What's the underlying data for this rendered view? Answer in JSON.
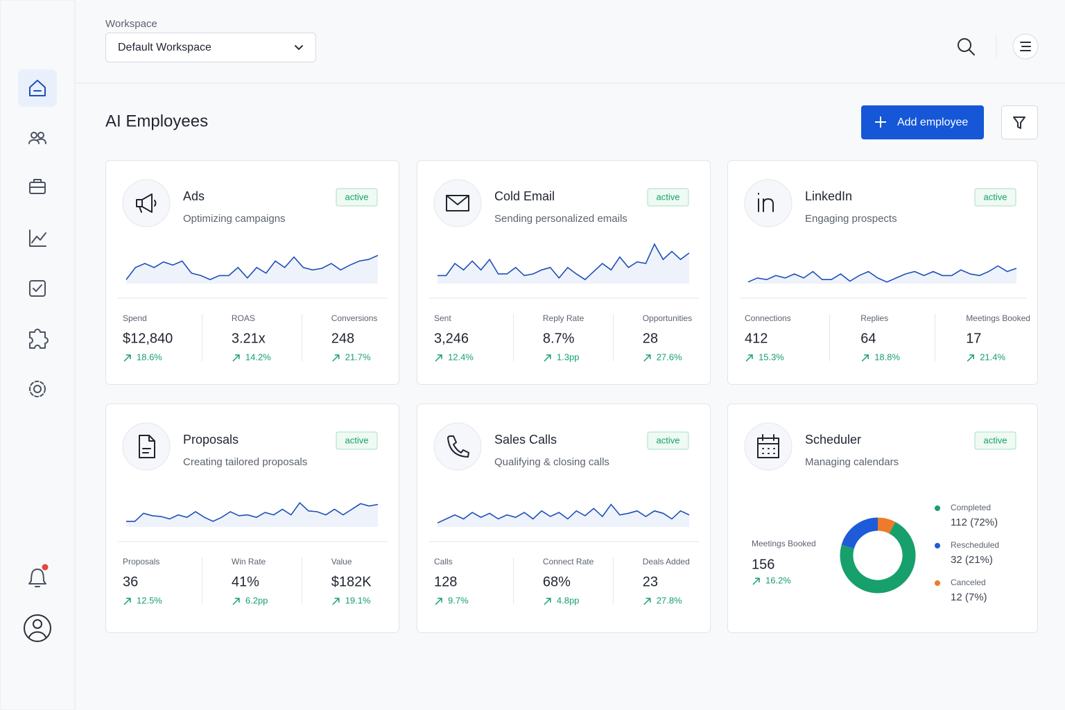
{
  "header": {
    "workspace_label": "Workspace",
    "workspace_value": "Default Workspace"
  },
  "page": {
    "title": "AI Employees",
    "add_button": "Add employee"
  },
  "cards": [
    {
      "name": "Ads",
      "subtitle": "Optimizing campaigns",
      "status": "active",
      "trend": [
        10,
        40,
        50,
        40,
        54,
        46,
        56,
        26,
        20,
        10,
        20,
        20,
        40,
        14,
        40,
        26,
        56,
        40,
        66,
        40,
        34,
        38,
        50,
        34,
        46,
        56,
        60,
        70
      ],
      "metrics": [
        {
          "label": "Spend",
          "value": "$12,840",
          "delta": "18.6%"
        },
        {
          "label": "ROAS",
          "value": "3.21x",
          "delta": "14.2%"
        },
        {
          "label": "Conversions",
          "value": "248",
          "delta": "21.7%"
        }
      ]
    },
    {
      "name": "Cold Email",
      "subtitle": "Sending personalized emails",
      "status": "active",
      "trend": [
        20,
        20,
        50,
        34,
        56,
        34,
        60,
        24,
        24,
        40,
        20,
        24,
        34,
        40,
        14,
        40,
        24,
        10,
        30,
        50,
        34,
        66,
        40,
        54,
        50,
        98,
        60,
        80,
        60,
        76
      ],
      "metrics": [
        {
          "label": "Sent",
          "value": "3,246",
          "delta": "12.4%"
        },
        {
          "label": "Reply Rate",
          "value": "8.7%",
          "delta": "1.3pp"
        },
        {
          "label": "Opportunities",
          "value": "28",
          "delta": "27.6%"
        }
      ]
    },
    {
      "name": "LinkedIn",
      "subtitle": "Engaging prospects",
      "status": "active",
      "trend": [
        4,
        14,
        10,
        20,
        14,
        24,
        14,
        30,
        10,
        10,
        24,
        6,
        20,
        30,
        14,
        4,
        14,
        24,
        30,
        20,
        30,
        20,
        20,
        34,
        24,
        20,
        30,
        44,
        30,
        38
      ],
      "metrics": [
        {
          "label": "Connections",
          "value": "412",
          "delta": "15.3%"
        },
        {
          "label": "Replies",
          "value": "64",
          "delta": "18.8%"
        },
        {
          "label": "Meetings Booked",
          "value": "17",
          "delta": "21.4%"
        }
      ]
    },
    {
      "name": "Proposals",
      "subtitle": "Creating tailored proposals",
      "status": "active",
      "trend": [
        14,
        14,
        34,
        28,
        26,
        20,
        30,
        24,
        38,
        24,
        14,
        24,
        38,
        28,
        30,
        24,
        36,
        30,
        44,
        30,
        60,
        40,
        38,
        30,
        44,
        30,
        44,
        58,
        52,
        56
      ],
      "metrics": [
        {
          "label": "Proposals",
          "value": "36",
          "delta": "12.5%"
        },
        {
          "label": "Win Rate",
          "value": "41%",
          "delta": "6.2pp"
        },
        {
          "label": "Value",
          "value": "$182K",
          "delta": "19.1%"
        }
      ]
    },
    {
      "name": "Sales Calls",
      "subtitle": "Qualifying & closing calls",
      "status": "active",
      "trend": [
        10,
        20,
        30,
        20,
        36,
        24,
        34,
        20,
        30,
        24,
        36,
        20,
        40,
        26,
        36,
        20,
        40,
        28,
        46,
        26,
        56,
        30,
        34,
        40,
        26,
        40,
        34,
        20,
        40,
        30
      ],
      "metrics": [
        {
          "label": "Calls",
          "value": "128",
          "delta": "9.7%"
        },
        {
          "label": "Connect Rate",
          "value": "68%",
          "delta": "4.8pp"
        },
        {
          "label": "Deals Added",
          "value": "23",
          "delta": "27.8%"
        }
      ]
    }
  ],
  "scheduler": {
    "name": "Scheduler",
    "subtitle": "Managing calendars",
    "status": "active",
    "metric": {
      "label": "Meetings Booked",
      "value": "156",
      "delta": "16.2%"
    },
    "breakdown": [
      {
        "name": "Completed",
        "value": 112,
        "label": "112 (72%)",
        "color": "#17a06c"
      },
      {
        "name": "Rescheduled",
        "value": 32,
        "label": "32 (21%)",
        "color": "#1d5bd8"
      },
      {
        "name": "Canceled",
        "value": 12,
        "label": "12 (7%)",
        "color": "#ee7a2c"
      }
    ]
  }
}
